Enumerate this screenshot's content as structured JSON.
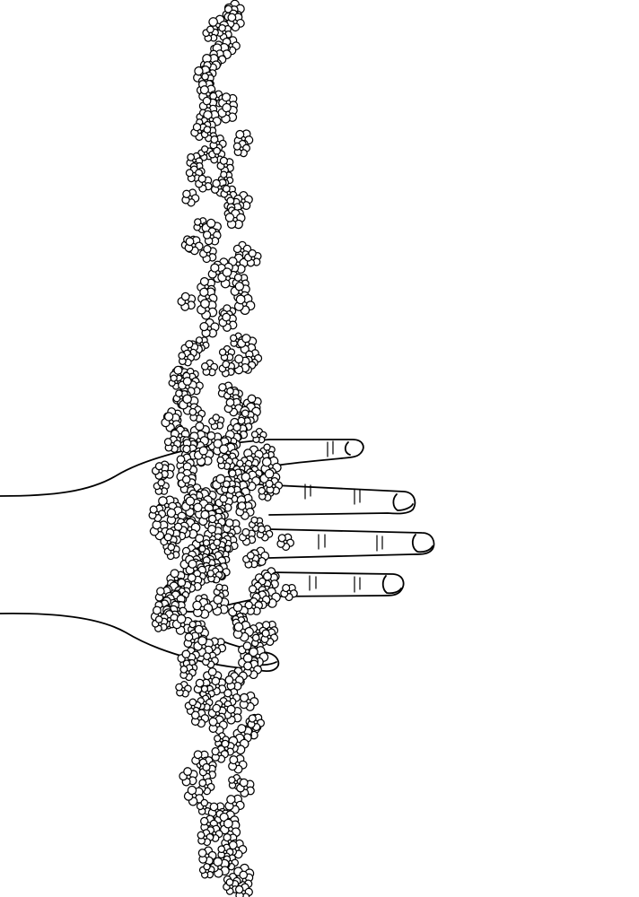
{
  "artwork": {
    "subject": "hand-with-falling-flowers",
    "style": "black line drawing on white",
    "colors": {
      "background": "#ffffff",
      "line": "#000000",
      "flower_fill": "#ffffff"
    },
    "flower_petal_count": 5
  }
}
